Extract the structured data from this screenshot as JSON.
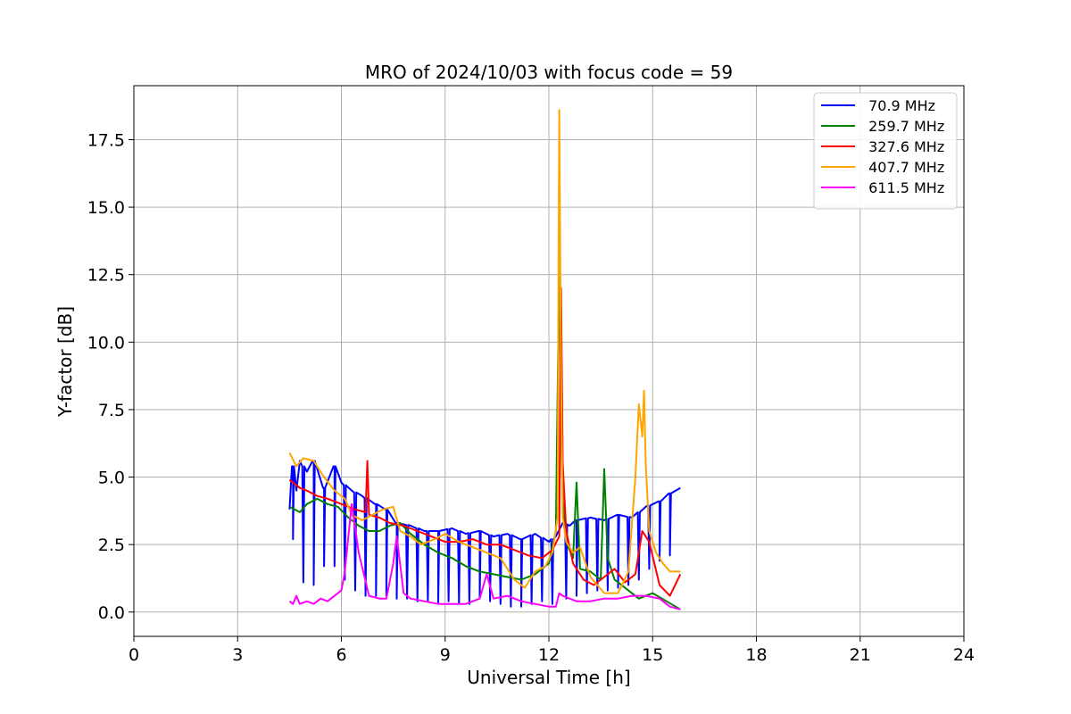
{
  "chart_data": {
    "type": "line",
    "title": "MRO of 2024/10/03 with focus code = 59",
    "xlabel": "Universal Time [h]",
    "ylabel": "Y-factor [dB]",
    "xlim": [
      0,
      24
    ],
    "ylim": [
      -0.9,
      19.5
    ],
    "xticks": [
      0,
      3,
      6,
      9,
      12,
      15,
      18,
      21,
      24
    ],
    "yticks": [
      0.0,
      2.5,
      5.0,
      7.5,
      10.0,
      12.5,
      15.0,
      17.5
    ],
    "ytick_labels": [
      "0.0",
      "2.5",
      "5.0",
      "7.5",
      "10.0",
      "12.5",
      "15.0",
      "17.5"
    ],
    "grid": true,
    "legend_position": "top-right",
    "series": [
      {
        "name": " 70.9 MHz",
        "color": "#0000ff",
        "x": [
          4.5,
          4.6,
          4.7,
          4.8,
          5.0,
          5.2,
          5.5,
          5.8,
          6.0,
          6.3,
          6.6,
          7.0,
          7.3,
          7.6,
          8.0,
          8.4,
          8.8,
          9.2,
          9.6,
          10.0,
          10.4,
          10.8,
          11.2,
          11.6,
          12.0,
          12.2,
          12.4,
          12.6,
          12.8,
          13.2,
          13.6,
          14.0,
          14.4,
          14.8,
          15.2,
          15.5,
          15.8
        ],
        "y": [
          3.8,
          5.4,
          4.5,
          5.6,
          5.2,
          5.6,
          4.6,
          5.4,
          4.8,
          4.5,
          4.3,
          4.0,
          3.8,
          3.3,
          3.2,
          3.0,
          3.0,
          3.1,
          2.9,
          3.0,
          2.8,
          2.9,
          2.7,
          2.9,
          2.6,
          2.8,
          3.3,
          3.2,
          3.4,
          3.5,
          3.4,
          3.6,
          3.5,
          3.9,
          4.1,
          4.4,
          4.6
        ],
        "dips_at": [
          4.6,
          4.9,
          5.2,
          5.5,
          5.8,
          6.1,
          6.4,
          6.7,
          7.0,
          7.3,
          7.6,
          7.9,
          8.2,
          8.5,
          8.8,
          9.1,
          9.4,
          9.7,
          10.0,
          10.3,
          10.6,
          10.9,
          11.2,
          11.5,
          11.8,
          12.1,
          12.5,
          12.8,
          13.1,
          13.4,
          13.7,
          14.0,
          14.3,
          14.6,
          14.9,
          15.2,
          15.5
        ],
        "dip_values": [
          2.7,
          1.1,
          1.0,
          1.7,
          1.7,
          1.2,
          0.8,
          0.6,
          0.6,
          0.6,
          0.5,
          0.5,
          0.4,
          0.4,
          0.3,
          0.4,
          0.3,
          0.3,
          0.5,
          0.4,
          0.3,
          0.2,
          0.2,
          0.3,
          0.4,
          0.3,
          0.5,
          0.6,
          0.7,
          0.8,
          0.8,
          0.9,
          1.0,
          1.2,
          1.6,
          1.9,
          2.1
        ]
      },
      {
        "name": " 259.7 MHz",
        "color": "#008000",
        "x": [
          4.5,
          4.8,
          5.0,
          5.3,
          5.6,
          5.9,
          6.2,
          6.5,
          6.8,
          7.1,
          7.4,
          7.7,
          8.0,
          8.4,
          8.8,
          9.2,
          9.6,
          10.0,
          10.4,
          10.8,
          11.2,
          11.6,
          12.0,
          12.2,
          12.3,
          12.35,
          12.4,
          12.5,
          12.7,
          12.8,
          12.9,
          13.2,
          13.5,
          13.6,
          13.7,
          13.9,
          14.2,
          14.6,
          15.0,
          15.4,
          15.8
        ],
        "y": [
          3.9,
          3.7,
          4.0,
          4.2,
          4.0,
          3.9,
          3.5,
          3.2,
          3.0,
          3.0,
          3.2,
          3.3,
          2.9,
          2.5,
          2.2,
          2.0,
          1.7,
          1.5,
          1.4,
          1.3,
          1.2,
          1.4,
          1.8,
          3.0,
          12.8,
          7.0,
          4.2,
          2.6,
          2.0,
          4.8,
          1.6,
          1.5,
          1.2,
          5.3,
          2.0,
          1.2,
          0.9,
          0.5,
          0.7,
          0.4,
          0.1
        ]
      },
      {
        "name": " 327.6 MHz",
        "color": "#ff0000",
        "x": [
          4.5,
          4.8,
          5.0,
          5.3,
          5.6,
          6.0,
          6.4,
          6.7,
          6.75,
          6.8,
          7.1,
          7.4,
          7.8,
          8.2,
          8.6,
          9.0,
          9.4,
          9.8,
          10.2,
          10.6,
          11.0,
          11.4,
          11.8,
          12.1,
          12.3,
          12.35,
          12.4,
          12.5,
          12.7,
          13.0,
          13.3,
          13.6,
          13.9,
          14.2,
          14.5,
          14.7,
          14.9,
          15.2,
          15.5,
          15.8
        ],
        "y": [
          4.9,
          4.6,
          4.5,
          4.3,
          4.2,
          4.0,
          3.8,
          3.7,
          5.6,
          3.6,
          3.5,
          3.3,
          3.2,
          3.0,
          2.8,
          2.6,
          2.6,
          2.7,
          2.5,
          2.5,
          2.3,
          2.1,
          2.0,
          2.3,
          2.8,
          12.0,
          5.5,
          3.0,
          1.8,
          1.2,
          1.0,
          1.3,
          1.6,
          1.1,
          1.4,
          3.0,
          2.6,
          1.0,
          0.6,
          1.4
        ]
      },
      {
        "name": " 407.7 MHz",
        "color": "#ffa500",
        "x": [
          4.5,
          4.7,
          4.9,
          5.2,
          5.5,
          5.8,
          6.1,
          6.3,
          6.6,
          6.9,
          7.2,
          7.5,
          7.7,
          8.0,
          8.3,
          8.7,
          9.0,
          9.4,
          9.8,
          10.2,
          10.6,
          11.0,
          11.3,
          11.6,
          11.9,
          12.1,
          12.25,
          12.3,
          12.35,
          12.4,
          12.5,
          12.7,
          12.9,
          13.2,
          13.6,
          14.0,
          14.3,
          14.5,
          14.6,
          14.7,
          14.75,
          14.8,
          14.9,
          15.1,
          15.3,
          15.5,
          15.8
        ],
        "y": [
          5.9,
          5.4,
          5.7,
          5.6,
          5.0,
          4.5,
          4.2,
          3.6,
          3.4,
          3.6,
          3.8,
          3.9,
          3.0,
          2.8,
          2.5,
          2.7,
          2.9,
          2.6,
          2.4,
          2.2,
          2.0,
          1.2,
          0.9,
          1.5,
          1.7,
          2.2,
          3.5,
          18.6,
          9.0,
          3.5,
          2.6,
          2.2,
          2.4,
          1.3,
          0.7,
          0.7,
          1.5,
          5.0,
          7.7,
          6.5,
          8.2,
          5.5,
          3.0,
          2.2,
          1.8,
          1.5,
          1.5
        ]
      },
      {
        "name": " 611.5 MHz",
        "color": "#ff00ff",
        "x": [
          4.5,
          4.6,
          4.7,
          4.8,
          5.0,
          5.2,
          5.4,
          5.6,
          5.8,
          6.0,
          6.1,
          6.2,
          6.3,
          6.5,
          6.8,
          7.1,
          7.3,
          7.5,
          7.6,
          7.8,
          8.0,
          8.4,
          8.8,
          9.2,
          9.6,
          10.0,
          10.2,
          10.4,
          10.8,
          11.2,
          11.6,
          12.0,
          12.2,
          12.3,
          12.4,
          12.6,
          12.8,
          13.2,
          13.6,
          14.0,
          14.4,
          14.8,
          15.2,
          15.5,
          15.8
        ],
        "y": [
          0.4,
          0.3,
          0.6,
          0.3,
          0.4,
          0.3,
          0.5,
          0.4,
          0.6,
          0.8,
          1.5,
          2.8,
          4.0,
          2.2,
          0.6,
          0.5,
          0.5,
          1.8,
          2.8,
          0.7,
          0.5,
          0.4,
          0.3,
          0.3,
          0.3,
          0.5,
          1.4,
          0.5,
          0.6,
          0.4,
          0.3,
          0.2,
          0.2,
          0.7,
          0.6,
          0.5,
          0.4,
          0.4,
          0.5,
          0.5,
          0.6,
          0.6,
          0.5,
          0.2,
          0.1
        ]
      }
    ]
  }
}
